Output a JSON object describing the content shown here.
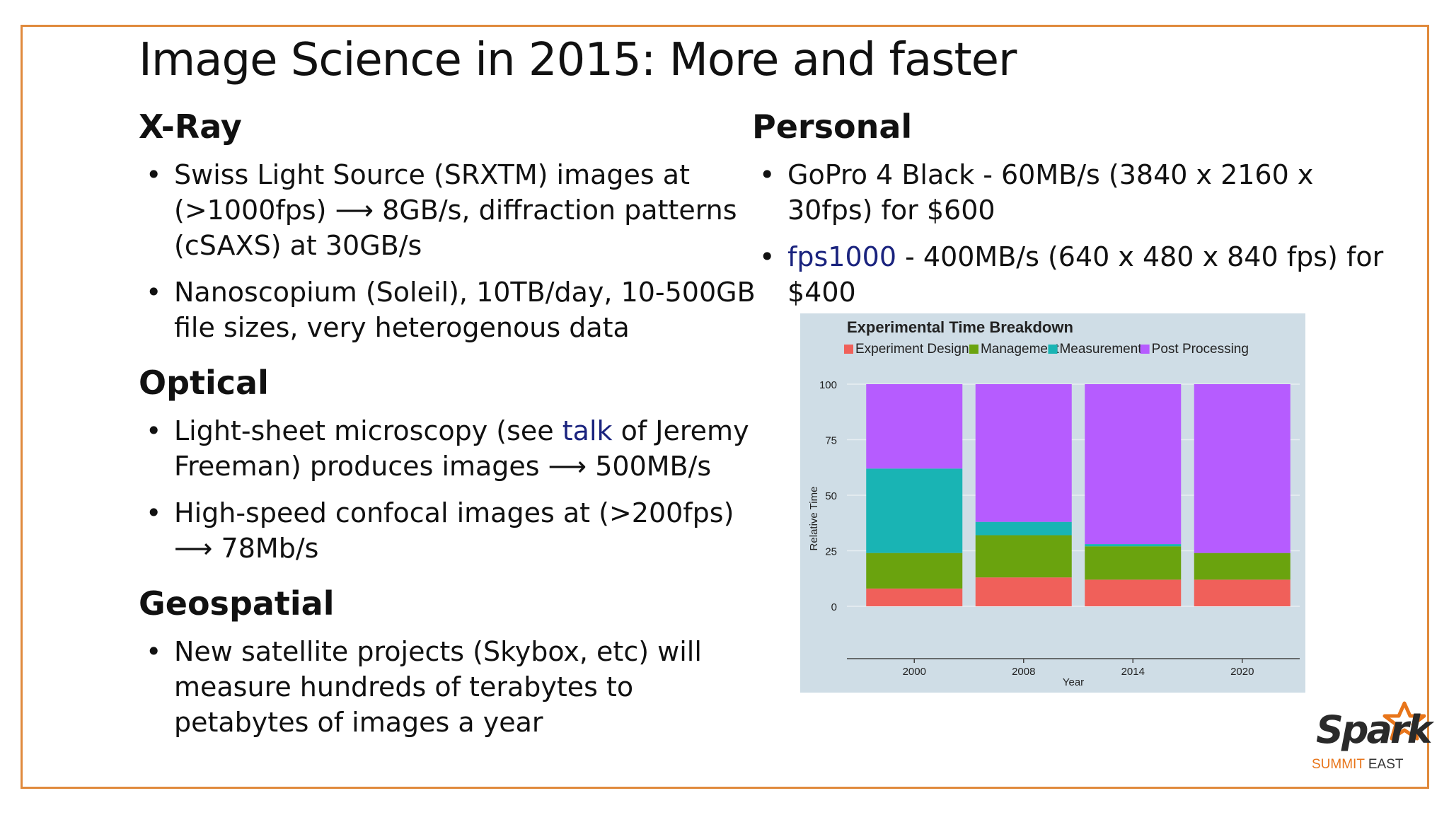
{
  "slide": {
    "title": "Image Science in 2015: More and faster",
    "accent_color": "#e08a3c",
    "link_color": "#1a237e"
  },
  "left": {
    "xray": {
      "heading": "X-Ray",
      "items": [
        "Swiss Light Source (SRXTM) images at (>1000fps) ⟶ 8GB/s, diffraction patterns (cSAXS) at 30GB/s",
        "Nanoscopium (Soleil), 10TB/day, 10-500GB file sizes, very heterogenous data"
      ]
    },
    "optical": {
      "heading": "Optical",
      "item1_pre": "Light-sheet microscopy (see ",
      "item1_link": "talk",
      "item1_post": " of Jeremy Freeman) produces images ⟶ 500MB/s",
      "item2": "High-speed confocal images at (>200fps) ⟶ 78Mb/s"
    },
    "geospatial": {
      "heading": "Geospatial",
      "items": [
        "New satellite projects (Skybox, etc) will measure hundreds of terabytes to petabytes of images a year"
      ]
    }
  },
  "right": {
    "personal": {
      "heading": "Personal",
      "item1": "GoPro 4 Black - 60MB/s (3840 x 2160 x 30fps) for $600",
      "item2_link": "fps1000",
      "item2_post": " - 400MB/s (640 x 480 x 840 fps) for $400"
    }
  },
  "chart_data": {
    "type": "bar",
    "stacked": true,
    "title": "Experimental Time Breakdown",
    "xlabel": "Year",
    "ylabel": "Relative Time",
    "categories": [
      "2000",
      "2008",
      "2014",
      "2020"
    ],
    "ylim": [
      0,
      100
    ],
    "yticks": [
      "0",
      "25",
      "50",
      "75",
      "100"
    ],
    "legend_position": "top",
    "series": [
      {
        "name": "Experiment Design",
        "color": "#f0605a",
        "values": [
          8,
          13,
          12,
          12
        ]
      },
      {
        "name": "Management",
        "color": "#6aa30e",
        "values": [
          16,
          19,
          15,
          12
        ]
      },
      {
        "name": "Measurements",
        "color": "#19b4b4",
        "values": [
          38,
          6,
          1,
          0
        ]
      },
      {
        "name": "Post Processing",
        "color": "#b65cff",
        "values": [
          38,
          62,
          72,
          76
        ]
      }
    ]
  },
  "logo": {
    "word": "Spark",
    "sub_a": "SUMMIT",
    "sub_b": " EAST"
  }
}
